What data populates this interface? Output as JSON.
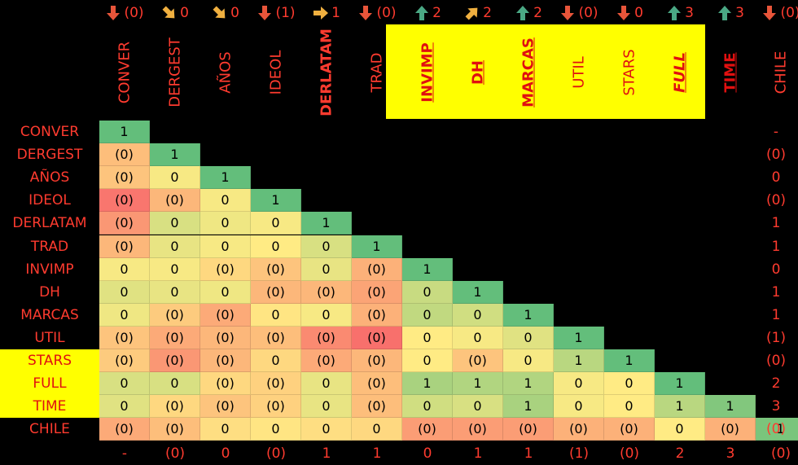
{
  "chart_data": {
    "type": "heatmap",
    "variables": [
      "CONVER",
      "DERGEST",
      "AÑOS",
      "IDEOL",
      "DERLATAM",
      "TRAD",
      "INVIMP",
      "DH",
      "MARCAS",
      "UTIL",
      "STARS",
      "FULL",
      "TIME",
      "CHILE"
    ],
    "highlighted_columns": [
      "INVIMP",
      "DH",
      "MARCAS",
      "UTIL",
      "STARS",
      "FULL",
      "TIME"
    ],
    "highlighted_rows": [
      "STARS",
      "FULL",
      "TIME"
    ],
    "bold_columns": [
      "DERLATAM",
      "INVIMP",
      "DH",
      "MARCAS",
      "FULL",
      "TIME"
    ],
    "underlined_columns": [
      "INVIMP",
      "DH",
      "MARCAS",
      "FULL",
      "TIME"
    ],
    "italic_columns": [
      "FULL"
    ],
    "trend_indicators": [
      {
        "arrow": "down",
        "label": "(0)"
      },
      {
        "arrow": "down-right",
        "label": "0"
      },
      {
        "arrow": "down-right",
        "label": "0"
      },
      {
        "arrow": "down",
        "label": "(1)"
      },
      {
        "arrow": "right",
        "label": "1"
      },
      {
        "arrow": "down",
        "label": "(0)"
      },
      {
        "arrow": "up",
        "label": "2"
      },
      {
        "arrow": "up-right",
        "label": "2"
      },
      {
        "arrow": "up",
        "label": "2"
      },
      {
        "arrow": "down",
        "label": "(0)"
      },
      {
        "arrow": "down",
        "label": "0"
      },
      {
        "arrow": "up",
        "label": "3"
      },
      {
        "arrow": "up",
        "label": "3"
      },
      {
        "arrow": "down",
        "label": "(0)"
      }
    ],
    "matrix_labels": [
      [
        "1"
      ],
      [
        "(0)",
        "1"
      ],
      [
        "(0)",
        "0",
        "1"
      ],
      [
        "(0)",
        "(0)",
        "0",
        "1"
      ],
      [
        "(0)",
        "0",
        "0",
        "0",
        "1"
      ],
      [
        "(0)",
        "0",
        "0",
        "0",
        "0",
        "1"
      ],
      [
        "0",
        "0",
        "(0)",
        "(0)",
        "0",
        "(0)",
        "1"
      ],
      [
        "0",
        "0",
        "0",
        "(0)",
        "(0)",
        "(0)",
        "0",
        "1"
      ],
      [
        "0",
        "(0)",
        "(0)",
        "0",
        "0",
        "(0)",
        "0",
        "0",
        "1"
      ],
      [
        "(0)",
        "(0)",
        "(0)",
        "(0)",
        "(0)",
        "(0)",
        "0",
        "0",
        "0",
        "1"
      ],
      [
        "(0)",
        "(0)",
        "(0)",
        "0",
        "(0)",
        "(0)",
        "0",
        "(0)",
        "0",
        "1",
        "1"
      ],
      [
        "0",
        "0",
        "(0)",
        "(0)",
        "0",
        "(0)",
        "1",
        "1",
        "1",
        "0",
        "0",
        "1"
      ],
      [
        "0",
        "(0)",
        "(0)",
        "(0)",
        "0",
        "(0)",
        "0",
        "0",
        "1",
        "0",
        "0",
        "1",
        "1"
      ],
      [
        "(0)",
        "(0)",
        "0",
        "0",
        "0",
        "0",
        "(0)",
        "(0)",
        "(0)",
        "(0)",
        "(0)",
        "0",
        "(0)",
        "1"
      ]
    ],
    "matrix_color_scores": [
      [
        1.0
      ],
      [
        -0.35,
        1.0
      ],
      [
        -0.3,
        0.05,
        1.0
      ],
      [
        -0.9,
        -0.4,
        0.05,
        1.0
      ],
      [
        -0.65,
        0.25,
        0.1,
        0.05,
        1.0
      ],
      [
        -0.4,
        0.15,
        0.05,
        0.0,
        0.25,
        1.0
      ],
      [
        0.05,
        0.05,
        -0.15,
        -0.3,
        0.15,
        -0.45,
        1.0
      ],
      [
        0.2,
        0.15,
        0.1,
        -0.4,
        -0.4,
        -0.55,
        0.35,
        1.0
      ],
      [
        0.1,
        -0.25,
        -0.5,
        -0.05,
        0.05,
        -0.45,
        0.4,
        0.3,
        1.0
      ],
      [
        -0.3,
        -0.5,
        -0.4,
        -0.35,
        -0.75,
        -0.95,
        0.0,
        0.05,
        0.2,
        1.0
      ],
      [
        -0.25,
        -0.65,
        -0.4,
        -0.15,
        -0.5,
        -0.4,
        0.0,
        -0.3,
        0.05,
        0.45,
        1.0
      ],
      [
        0.25,
        0.25,
        -0.15,
        -0.2,
        0.15,
        -0.35,
        0.55,
        0.5,
        0.5,
        0.05,
        0.0,
        1.0
      ],
      [
        0.2,
        -0.15,
        -0.3,
        -0.2,
        0.15,
        -0.35,
        0.3,
        0.25,
        0.55,
        0.05,
        0.0,
        0.45,
        0.8
      ],
      [
        -0.5,
        -0.35,
        -0.1,
        -0.05,
        -0.1,
        -0.15,
        -0.6,
        -0.6,
        -0.6,
        -0.45,
        -0.45,
        0.0,
        -0.45,
        0.85
      ]
    ],
    "right_values": [
      "-",
      "(0)",
      "0",
      "(0)",
      "1",
      "1",
      "0",
      "1",
      "1",
      "(1)",
      "(0)",
      "2",
      "3",
      "(0)"
    ],
    "bottom_values": [
      "-",
      "(0)",
      "0",
      "(0)",
      "1",
      "1",
      "0",
      "1",
      "1",
      "(1)",
      "(0)",
      "2",
      "3",
      "(0)"
    ]
  },
  "colors": {
    "background": "#000000",
    "label": "#ff3b2f",
    "highlight": "#ffff00",
    "arrow_down": "#e8553a",
    "arrow_up": "#4aa884",
    "arrow_side": "#f0b040"
  }
}
